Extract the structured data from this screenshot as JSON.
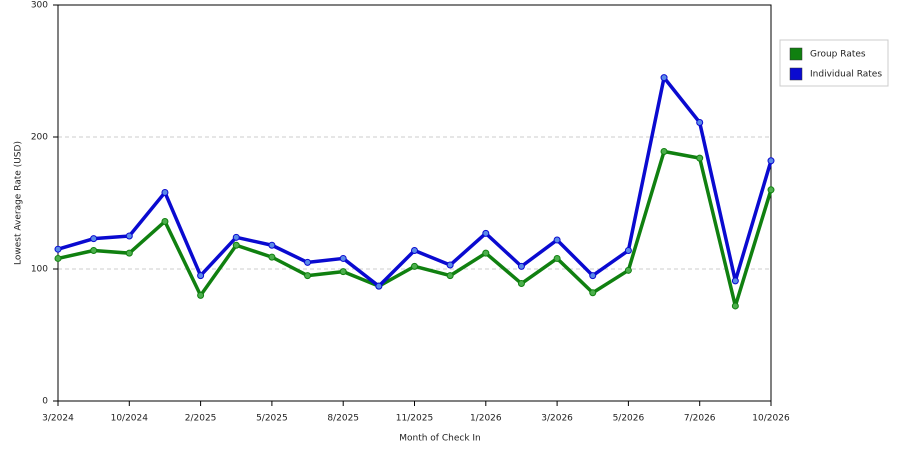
{
  "chart_data": {
    "type": "line",
    "x_label": "Month of Check In",
    "y_label": "Lowest Average Rate (USD)",
    "categories": [
      "3/2024",
      null,
      "10/2024",
      null,
      "2/2025",
      null,
      "5/2025",
      null,
      "8/2025",
      null,
      "11/2025",
      null,
      "1/2026",
      null,
      "3/2026",
      null,
      "5/2026",
      null,
      "7/2026",
      null,
      "10/2026"
    ],
    "series": [
      {
        "name": "Group Rates",
        "color": "#108010",
        "values": [
          108,
          114,
          112,
          136,
          80,
          118,
          109,
          95,
          98,
          87,
          102,
          95,
          112,
          89,
          108,
          82,
          99,
          189,
          184,
          72,
          160
        ]
      },
      {
        "name": "Individual Rates",
        "color": "#0a0ad0",
        "values": [
          115,
          123,
          125,
          158,
          95,
          124,
          118,
          105,
          108,
          87,
          114,
          103,
          127,
          102,
          122,
          95,
          114,
          245,
          211,
          91,
          182
        ]
      }
    ],
    "ylim": [
      0,
      300
    ],
    "yticks": [
      0,
      100,
      200,
      300
    ],
    "grid": true,
    "legend": "top-right"
  }
}
